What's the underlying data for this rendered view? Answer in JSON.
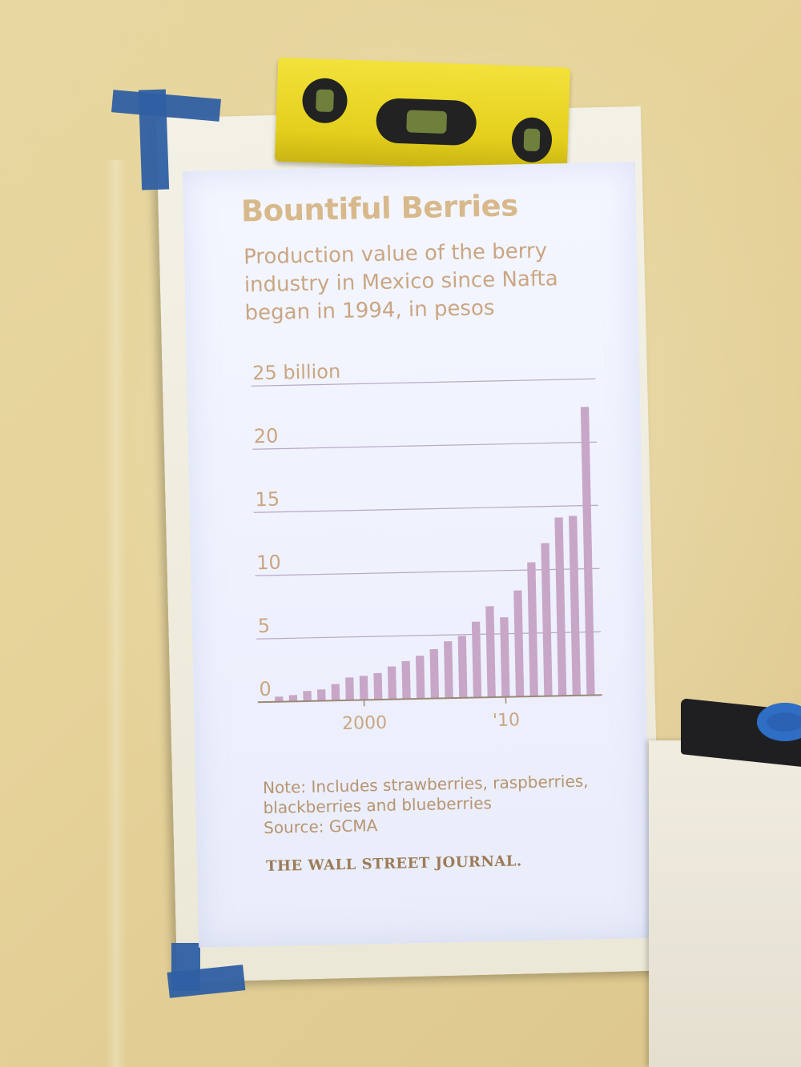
{
  "chart_data": {
    "type": "bar",
    "title": "Bountiful Berries",
    "subtitle": "Production value of the berry industry in Mexico since Nafta began in 1994, in pesos",
    "x_ticks": [
      "2000",
      "'10"
    ],
    "y_ticks": [
      "0",
      "5",
      "10",
      "15",
      "20",
      "25 billion"
    ],
    "ylim": [
      0,
      25
    ],
    "grid": true,
    "bar_color": "#c7a6c7",
    "x": [
      1994,
      1995,
      1996,
      1997,
      1998,
      1999,
      2000,
      2001,
      2002,
      2003,
      2004,
      2005,
      2006,
      2007,
      2008,
      2009,
      2010,
      2011,
      2012,
      2013,
      2014,
      2015,
      2016
    ],
    "values": [
      0.4,
      0.5,
      0.8,
      0.9,
      1.3,
      1.8,
      1.9,
      2.1,
      2.6,
      3.0,
      3.4,
      3.9,
      4.5,
      4.9,
      6.0,
      7.2,
      6.3,
      8.4,
      10.6,
      12.1,
      14.1,
      14.2,
      22.8
    ]
  },
  "note_lines": [
    "Note: Includes strawberries, raspberries,",
    "blackberries and blueberries",
    "Source: GCMA"
  ],
  "brand": "THE WALL STREET JOURNAL.",
  "colors": {
    "title": "#d8b98c",
    "text": "#caa683",
    "gridline": "#b9a7c4",
    "axis": "#9c8877"
  }
}
